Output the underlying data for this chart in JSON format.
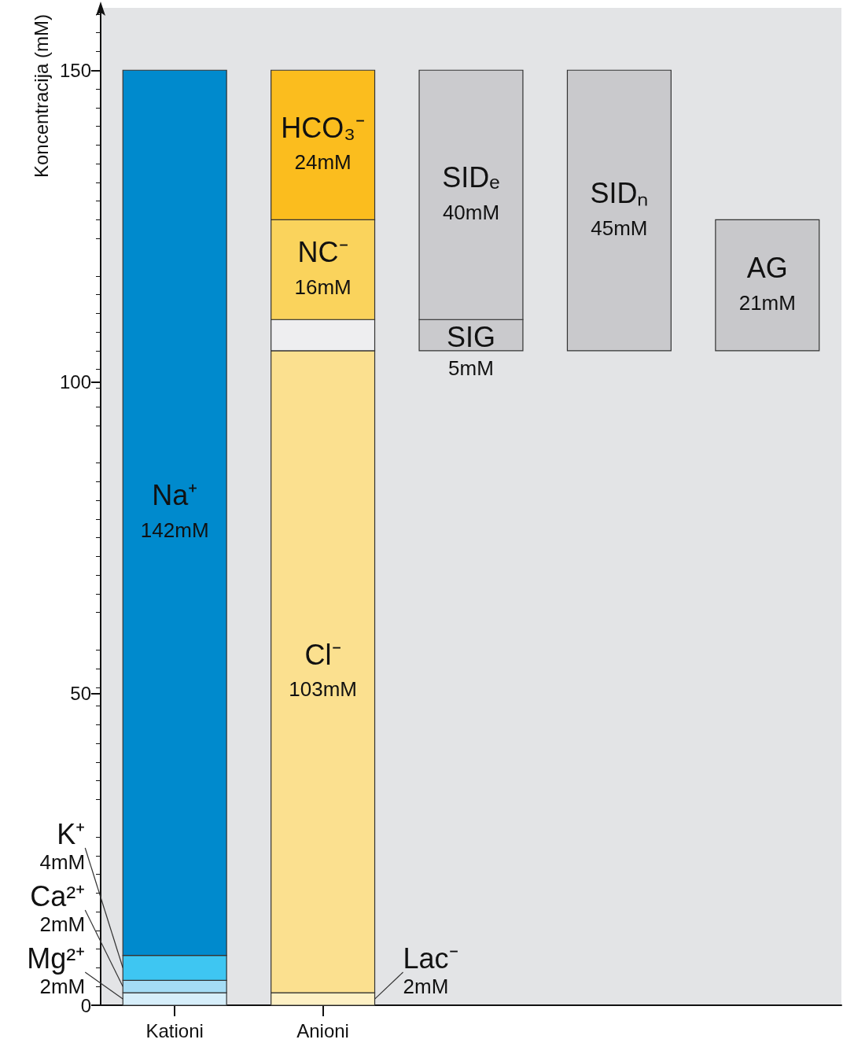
{
  "chart_data": {
    "type": "bar",
    "ylabel": "Koncentracija (mM)",
    "categories": [
      "Kationi",
      "Anioni",
      null,
      null,
      null
    ],
    "ylim": [
      0,
      160
    ],
    "yticks": [
      0,
      50,
      100,
      150
    ],
    "grid": false,
    "legend": false,
    "series": [
      {
        "name": "Mg²⁺",
        "color": "#d6eefa",
        "values": [
          2,
          null,
          null,
          null,
          null
        ],
        "base": [
          0,
          null,
          null,
          null,
          null
        ],
        "value_labels": [
          "2mM",
          null,
          null,
          null,
          null
        ]
      },
      {
        "name": "Ca²⁺",
        "color": "#a4dcf5",
        "values": [
          2,
          null,
          null,
          null,
          null
        ],
        "base": [
          2,
          null,
          null,
          null,
          null
        ],
        "value_labels": [
          "2mM",
          null,
          null,
          null,
          null
        ]
      },
      {
        "name": "K⁺",
        "color": "#3ec6f2",
        "values": [
          4,
          null,
          null,
          null,
          null
        ],
        "base": [
          4,
          null,
          null,
          null,
          null
        ],
        "value_labels": [
          "4mM",
          null,
          null,
          null,
          null
        ]
      },
      {
        "name": "Na⁺",
        "color": "#008acd",
        "values": [
          142,
          null,
          null,
          null,
          null
        ],
        "base": [
          8,
          null,
          null,
          null,
          null
        ],
        "value_labels": [
          "142mM",
          null,
          null,
          null,
          null
        ]
      },
      {
        "name": "Lac⁻",
        "color": "#fdf0c4",
        "values": [
          null,
          2,
          null,
          null,
          null
        ],
        "base": [
          null,
          0,
          null,
          null,
          null
        ],
        "value_labels": [
          null,
          "2mM",
          null,
          null,
          null
        ]
      },
      {
        "name": "Cl⁻",
        "color": "#fbe08f",
        "values": [
          null,
          103,
          null,
          null,
          null
        ],
        "base": [
          null,
          2,
          null,
          null,
          null
        ],
        "value_labels": [
          null,
          "103mM",
          null,
          null,
          null
        ]
      },
      {
        "color": "#eeeef0",
        "values": [
          null,
          5,
          null,
          null,
          null
        ],
        "base": [
          null,
          105,
          null,
          null,
          null
        ]
      },
      {
        "name": "NC⁻",
        "color": "#fad35c",
        "values": [
          null,
          16,
          null,
          null,
          null
        ],
        "base": [
          null,
          110,
          null,
          null,
          null
        ],
        "value_labels": [
          null,
          "16mM",
          null,
          null,
          null
        ]
      },
      {
        "name": "HCO₃⁻",
        "color": "#fbbd1e",
        "values": [
          null,
          24,
          null,
          null,
          null
        ],
        "base": [
          null,
          126,
          null,
          null,
          null
        ],
        "value_labels": [
          null,
          "24mM",
          null,
          null,
          null
        ]
      },
      {
        "name": "SIG",
        "color": "#cacacd",
        "values": [
          null,
          null,
          5,
          null,
          null
        ],
        "base": [
          null,
          null,
          105,
          null,
          null
        ],
        "value_labels": [
          null,
          null,
          "5mM",
          null,
          null
        ]
      },
      {
        "name": "SIDₑ",
        "color": "#cbcbce",
        "values": [
          null,
          null,
          40,
          null,
          null
        ],
        "base": [
          null,
          null,
          110,
          null,
          null
        ],
        "value_labels": [
          null,
          null,
          "40mM",
          null,
          null
        ]
      },
      {
        "name": "SIDₙ",
        "color": "#c9c9cc",
        "values": [
          null,
          null,
          null,
          45,
          null
        ],
        "base": [
          null,
          null,
          null,
          105,
          null
        ],
        "value_labels": [
          null,
          null,
          null,
          "45mM",
          null
        ]
      },
      {
        "name": "AG",
        "color": "#c8c8cb",
        "values": [
          null,
          null,
          null,
          null,
          21
        ],
        "base": [
          null,
          null,
          null,
          null,
          105
        ],
        "value_labels": [
          null,
          null,
          null,
          null,
          "21mM"
        ]
      }
    ]
  }
}
